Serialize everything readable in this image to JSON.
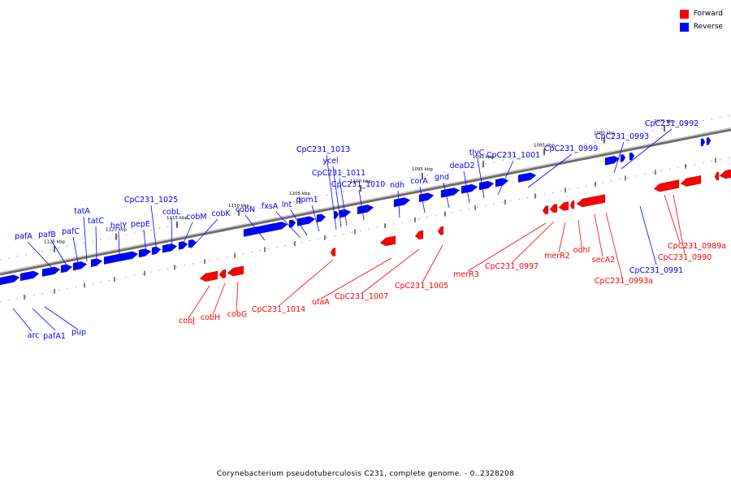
{
  "legend": {
    "forward": {
      "label": "Forward",
      "color": "#ff0000"
    },
    "reverse": {
      "label": "Reverse",
      "color": "#0000ff"
    }
  },
  "caption": "Corynebacterium pseudotuberculosis C231, complete genome. - 0..2328208",
  "colors": {
    "forward": "#ff0000",
    "reverse": "#0000ff",
    "backbone": "#6e6e6e"
  },
  "scale_ticks_kbp": [
    "1125 kbp",
    "1120 kbp",
    "1115 kbp",
    "1110 kbp",
    "1105 kbp",
    "1100 kbp",
    "1095 kbp",
    "1090 kbp",
    "1085 kbp",
    "1080 kbp",
    "1075 kbp"
  ],
  "reverse_genes": [
    "pafA",
    "pafB",
    "pafC",
    "tatA",
    "tatC",
    "helY",
    "pepE",
    "CpC231_1025",
    "cobL",
    "cobM",
    "cobK",
    "cobN",
    "fxsA",
    "lnt",
    "ppm1",
    "CpC231_1013",
    "ycel",
    "CpC231_1011",
    "CpC231_1010",
    "ndh",
    "corA",
    "gnd",
    "deaD2",
    "tlyC",
    "CpC231_1001",
    "CpC231_0999",
    "CpC231_0993",
    "CpC231_0992",
    "CpC231_0991",
    "arc",
    "pafA1",
    "pup"
  ],
  "forward_genes": [
    "cobJ",
    "cobH",
    "cobG",
    "CpC231_1014",
    "ufaA",
    "CpC231_1007",
    "CpC231_1005",
    "merR3",
    "CpC231_0997",
    "merR2",
    "odhI",
    "secA2",
    "CpC231_0993a",
    "CpC231_0989a",
    "CpC231_0990"
  ]
}
